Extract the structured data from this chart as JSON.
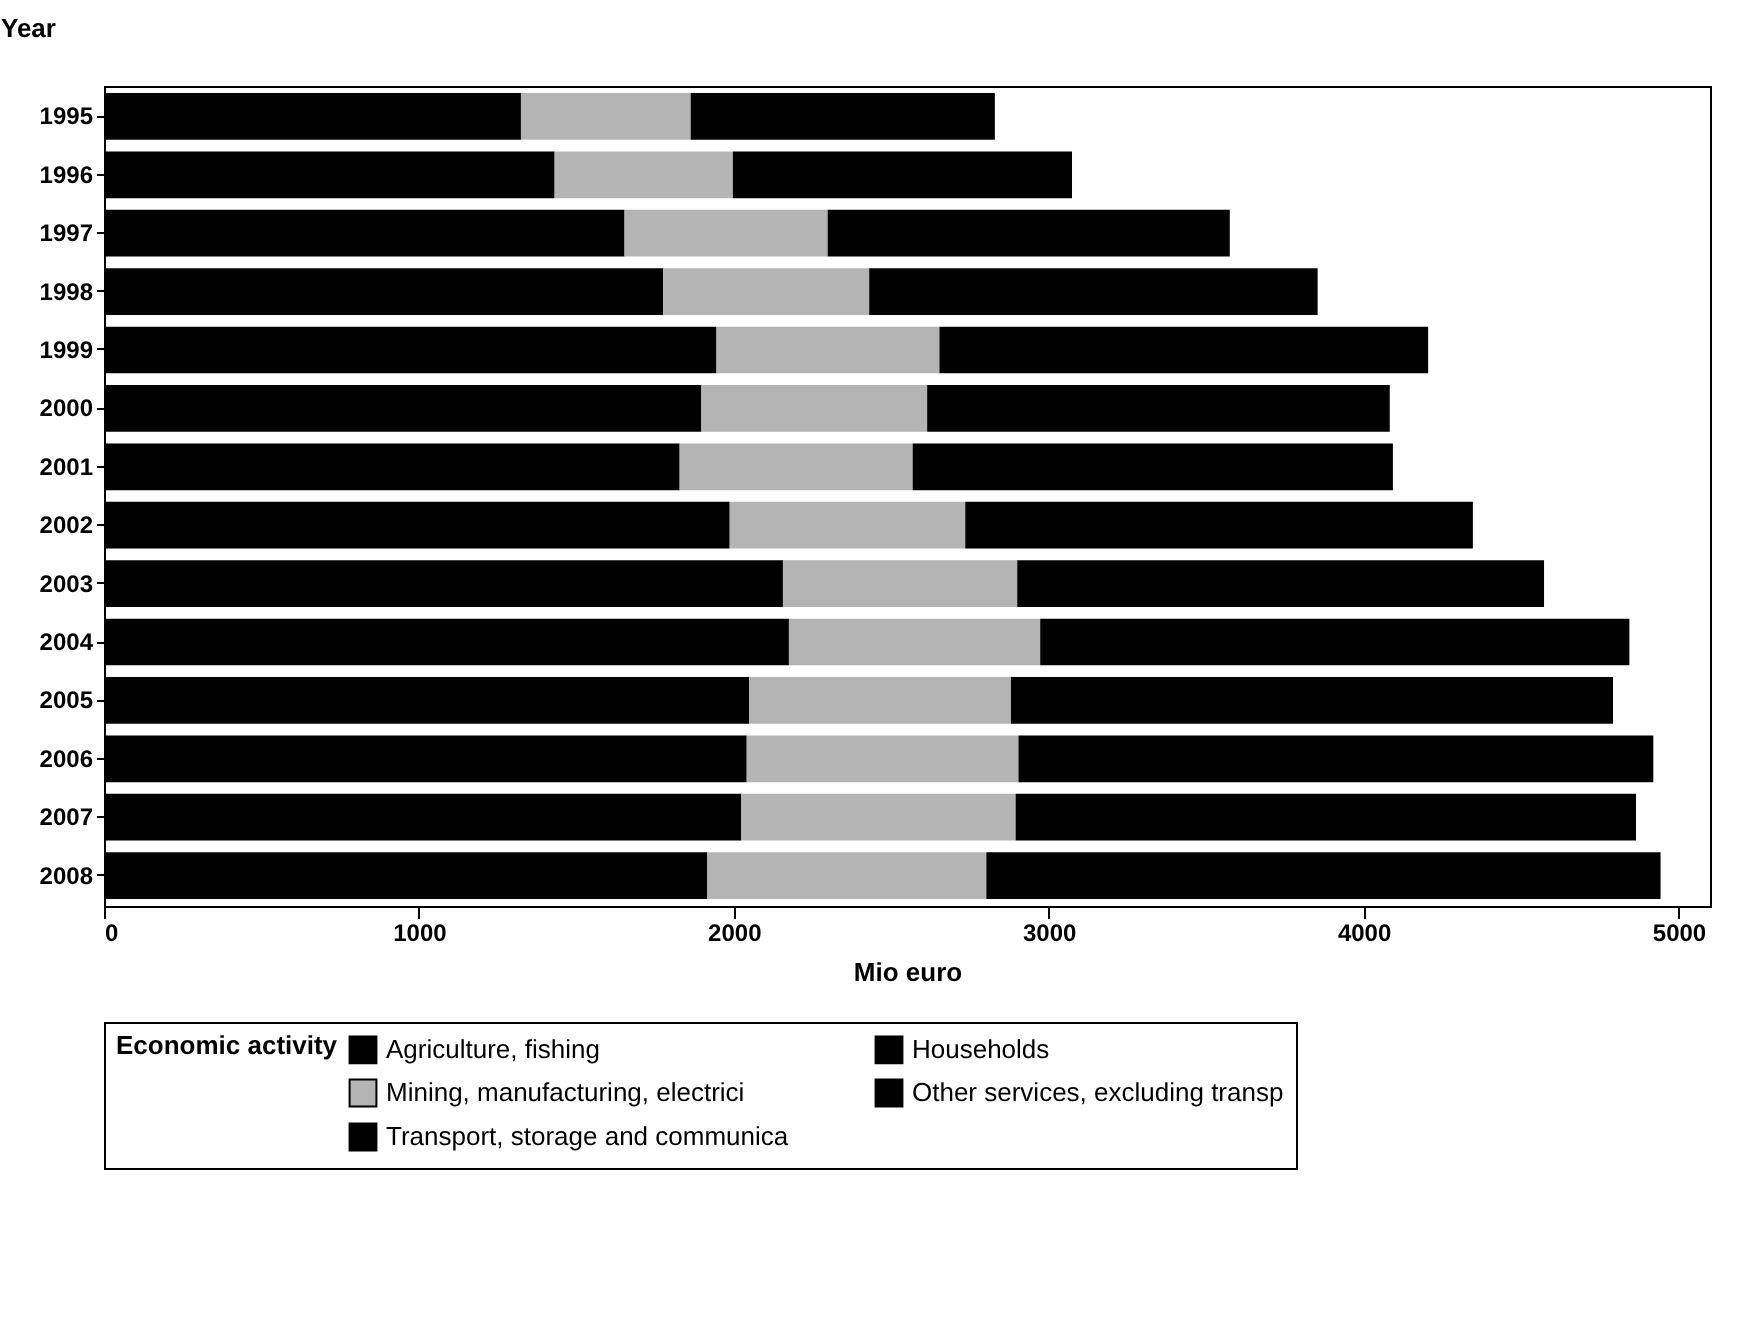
{
  "chart_data": {
    "type": "bar",
    "orientation": "horizontal",
    "stacked": true,
    "ylabel": "Year",
    "xlabel": "Mio euro",
    "legend_title": "Economic activity",
    "legend": "bottom",
    "categories": [
      "1995",
      "1996",
      "1997",
      "1998",
      "1999",
      "2000",
      "2001",
      "2002",
      "2003",
      "2004",
      "2005",
      "2006",
      "2007",
      "2008"
    ],
    "xlim": [
      0,
      5100
    ],
    "xticks": [
      0,
      1000,
      2000,
      3000,
      4000,
      5000
    ],
    "series": [
      {
        "name": "Agriculture, fishing",
        "color": "#000000",
        "values": [
          1324,
          1431,
          1653,
          1776,
          1945,
          1897,
          1828,
          1987,
          2156,
          2175,
          2049,
          2041,
          2024,
          1916
        ]
      },
      {
        "name": "Mining, manufacturing, electrici",
        "color": "#b4b4b4",
        "values": [
          539,
          566,
          645,
          654,
          708,
          717,
          740,
          748,
          744,
          798,
          831,
          863,
          871,
          886
        ]
      },
      {
        "name": "Transport, storage and communica",
        "color": "#000000",
        "values": [
          966,
          1077,
          1277,
          1424,
          1552,
          1469,
          1525,
          1612,
          1673,
          1871,
          1912,
          2016,
          1970,
          2141
        ]
      },
      {
        "name": "Households",
        "color": "#000000",
        "values": [
          null,
          null,
          null,
          null,
          null,
          null,
          null,
          null,
          null,
          null,
          null,
          null,
          null,
          null
        ]
      },
      {
        "name": "Other services, excluding transp",
        "color": "#000000",
        "values": [
          null,
          null,
          null,
          null,
          null,
          null,
          null,
          null,
          null,
          null,
          null,
          null,
          null,
          null
        ]
      }
    ]
  }
}
